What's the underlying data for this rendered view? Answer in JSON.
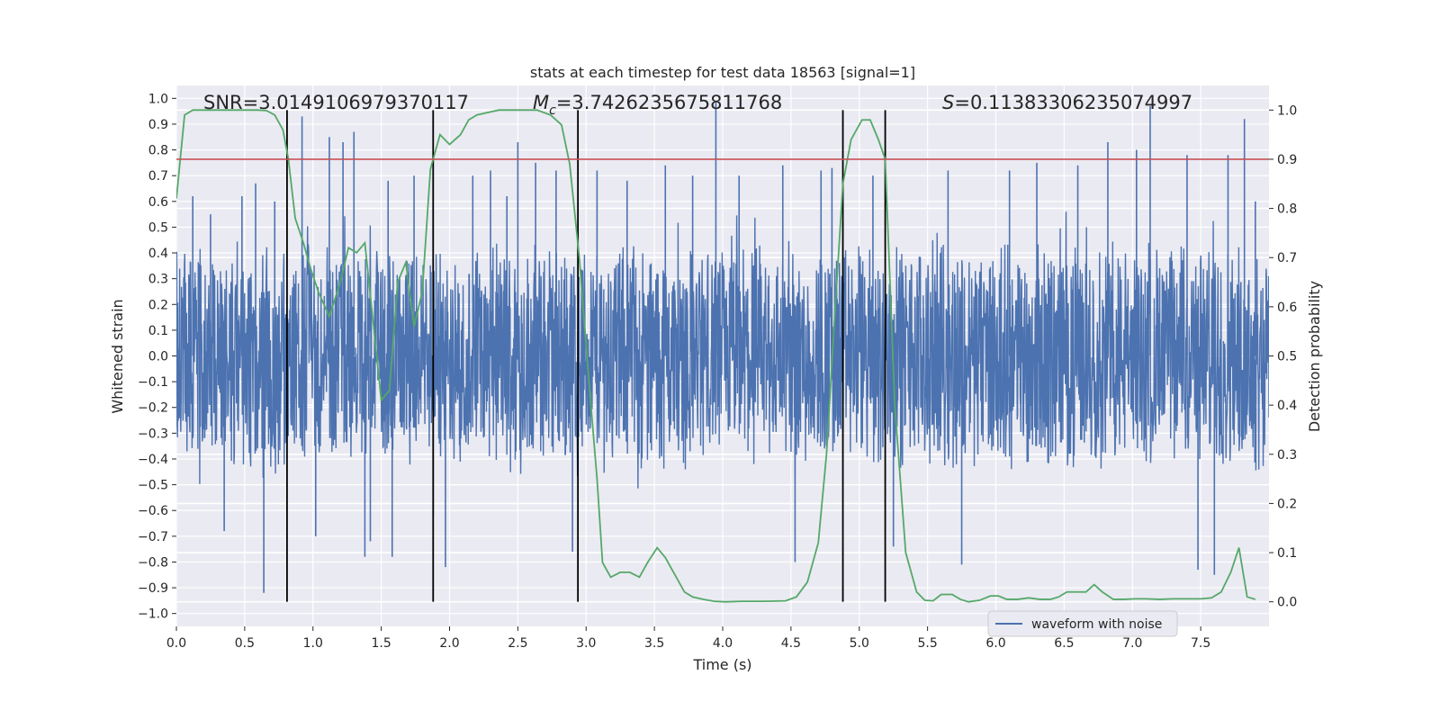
{
  "chart_data": {
    "type": "line",
    "title": "stats at each timestep for test data 18563 [signal=1]",
    "xlabel": "Time (s)",
    "ylabel": "Whitened strain",
    "y2label": "Detection probability",
    "xlim": [
      0,
      8
    ],
    "ylim": [
      -1.05,
      1.05
    ],
    "y2lim": [
      -0.05,
      1.05
    ],
    "x_ticks": [
      "0.0",
      "0.5",
      "1.0",
      "1.5",
      "2.0",
      "2.5",
      "3.0",
      "3.5",
      "4.0",
      "4.5",
      "5.0",
      "5.5",
      "6.0",
      "6.5",
      "7.0",
      "7.5"
    ],
    "y_ticks": [
      "1.0",
      "0.9",
      "0.8",
      "0.7",
      "0.6",
      "0.5",
      "0.4",
      "0.3",
      "0.2",
      "0.1",
      "0.0",
      "−0.1",
      "−0.2",
      "−0.3",
      "−0.4",
      "−0.5",
      "−0.6",
      "−0.7",
      "−0.8",
      "−0.9",
      "−1.0"
    ],
    "y2_ticks": [
      "1.0",
      "0.9",
      "0.8",
      "0.7",
      "0.6",
      "0.5",
      "0.4",
      "0.3",
      "0.2",
      "0.1",
      "0.0"
    ],
    "annotations": {
      "snr": "SNR=3.0149106979370117",
      "mc_symbol": "M",
      "mc_sub": "c",
      "mc_value": "=3.7426235675811768",
      "s_symbol": "S",
      "s_value": "=0.11383306235074997"
    },
    "threshold": 0.9,
    "vertical_lines": [
      0.81,
      1.88,
      2.94,
      4.88,
      5.19
    ],
    "series": [
      {
        "name": "waveform with noise",
        "color": "#4c72b0",
        "note_shape": "dense noise strain ~ +/-0.4 envelope with spikes to ~0.95 / -0.93",
        "spikes": [
          [
            0.12,
            0.62
          ],
          [
            0.25,
            0.55
          ],
          [
            0.35,
            -0.68
          ],
          [
            0.48,
            0.62
          ],
          [
            0.58,
            0.67
          ],
          [
            0.64,
            -0.92
          ],
          [
            0.72,
            0.6
          ],
          [
            0.92,
            0.93
          ],
          [
            1.02,
            -0.7
          ],
          [
            1.12,
            0.85
          ],
          [
            1.22,
            0.83
          ],
          [
            1.3,
            0.87
          ],
          [
            1.38,
            -0.78
          ],
          [
            1.42,
            -0.72
          ],
          [
            1.55,
            0.68
          ],
          [
            1.58,
            -0.78
          ],
          [
            1.74,
            0.7
          ],
          [
            1.88,
            -0.62
          ],
          [
            1.97,
            -0.82
          ],
          [
            2.17,
            0.7
          ],
          [
            2.3,
            0.72
          ],
          [
            2.42,
            0.62
          ],
          [
            2.5,
            0.83
          ],
          [
            2.63,
            0.75
          ],
          [
            2.78,
            0.72
          ],
          [
            2.9,
            -0.76
          ],
          [
            3.08,
            0.72
          ],
          [
            3.3,
            0.68
          ],
          [
            3.58,
            0.74
          ],
          [
            3.78,
            0.7
          ],
          [
            3.95,
            0.99
          ],
          [
            4.12,
            0.7
          ],
          [
            4.44,
            0.74
          ],
          [
            4.53,
            -0.8
          ],
          [
            4.72,
            0.72
          ],
          [
            4.8,
            0.73
          ],
          [
            5.1,
            0.7
          ],
          [
            5.25,
            -0.74
          ],
          [
            5.65,
            0.72
          ],
          [
            5.75,
            -0.81
          ],
          [
            6.1,
            0.72
          ],
          [
            6.3,
            0.75
          ],
          [
            6.6,
            0.74
          ],
          [
            6.82,
            0.83
          ],
          [
            7.03,
            0.8
          ],
          [
            7.13,
            0.97
          ],
          [
            7.4,
            0.78
          ],
          [
            7.48,
            -0.83
          ],
          [
            7.6,
            -0.85
          ],
          [
            7.7,
            0.78
          ],
          [
            7.82,
            0.92
          ],
          [
            7.9,
            0.6
          ]
        ]
      },
      {
        "name": "",
        "color": "#55a868",
        "axis": "y2",
        "x": [
          0.0,
          0.06,
          0.12,
          0.2,
          0.3,
          0.4,
          0.5,
          0.6,
          0.66,
          0.72,
          0.78,
          0.82,
          0.87,
          0.93,
          0.98,
          1.04,
          1.12,
          1.2,
          1.26,
          1.32,
          1.38,
          1.44,
          1.5,
          1.56,
          1.62,
          1.68,
          1.74,
          1.8,
          1.86,
          1.93,
          2.0,
          2.08,
          2.14,
          2.2,
          2.28,
          2.36,
          2.44,
          2.54,
          2.64,
          2.74,
          2.82,
          2.88,
          2.95,
          3.02,
          3.08,
          3.12,
          3.18,
          3.25,
          3.32,
          3.39,
          3.45,
          3.52,
          3.58,
          3.66,
          3.72,
          3.78,
          3.86,
          3.94,
          4.02,
          4.14,
          4.3,
          4.46,
          4.54,
          4.62,
          4.7,
          4.76,
          4.82,
          4.88,
          4.94,
          5.02,
          5.08,
          5.14,
          5.19,
          5.26,
          5.34,
          5.42,
          5.48,
          5.54,
          5.6,
          5.68,
          5.74,
          5.8,
          5.88,
          5.96,
          6.02,
          6.08,
          6.16,
          6.24,
          6.32,
          6.4,
          6.46,
          6.52,
          6.58,
          6.66,
          6.72,
          6.78,
          6.86,
          6.94,
          7.02,
          7.1,
          7.2,
          7.3,
          7.4,
          7.5,
          7.58,
          7.65,
          7.72,
          7.78,
          7.84,
          7.9
        ],
        "values": [
          0.82,
          0.99,
          1.0,
          1.0,
          1.0,
          1.0,
          1.0,
          1.0,
          0.999,
          0.99,
          0.96,
          0.9,
          0.78,
          0.73,
          0.68,
          0.63,
          0.58,
          0.65,
          0.72,
          0.71,
          0.73,
          0.57,
          0.41,
          0.43,
          0.65,
          0.69,
          0.56,
          0.63,
          0.88,
          0.95,
          0.93,
          0.95,
          0.98,
          0.99,
          0.995,
          1.0,
          1.0,
          1.0,
          1.0,
          0.99,
          0.97,
          0.89,
          0.7,
          0.45,
          0.25,
          0.08,
          0.05,
          0.06,
          0.06,
          0.05,
          0.08,
          0.11,
          0.09,
          0.05,
          0.02,
          0.01,
          0.005,
          0.001,
          0.0,
          0.001,
          0.001,
          0.002,
          0.01,
          0.04,
          0.12,
          0.3,
          0.58,
          0.85,
          0.94,
          0.98,
          0.98,
          0.94,
          0.9,
          0.4,
          0.1,
          0.02,
          0.003,
          0.002,
          0.015,
          0.015,
          0.005,
          0.0,
          0.003,
          0.012,
          0.012,
          0.005,
          0.005,
          0.008,
          0.005,
          0.005,
          0.01,
          0.02,
          0.02,
          0.02,
          0.035,
          0.02,
          0.005,
          0.005,
          0.006,
          0.006,
          0.005,
          0.006,
          0.006,
          0.006,
          0.008,
          0.02,
          0.06,
          0.11,
          0.01,
          0.005
        ]
      },
      {
        "name": "",
        "color": "#c44e52",
        "axis": "y2",
        "x": [
          0,
          8
        ],
        "values": [
          0.9,
          0.9
        ]
      }
    ],
    "legend": {
      "placement": "lower-center",
      "entries": [
        "waveform with noise"
      ]
    },
    "grid": true
  }
}
